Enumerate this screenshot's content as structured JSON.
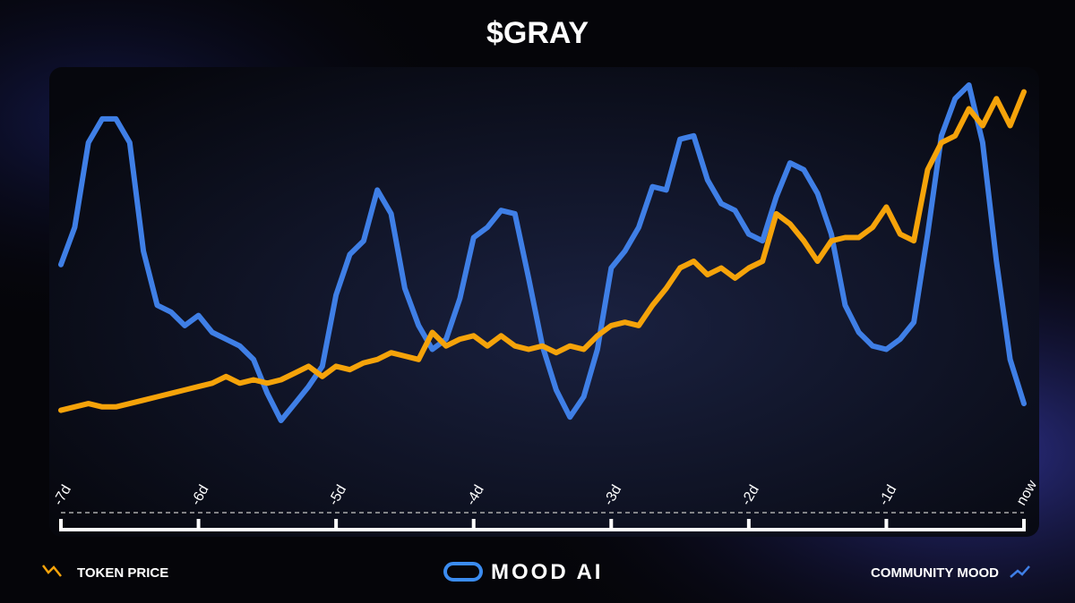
{
  "brand": "MOOD AI",
  "chart_data": {
    "type": "line",
    "title": "$GRAY",
    "x": [
      -7,
      -6.9,
      -6.8,
      -6.7,
      -6.6,
      -6.5,
      -6.4,
      -6.3,
      -6.2,
      -6.1,
      -6,
      -5.9,
      -5.8,
      -5.7,
      -5.6,
      -5.5,
      -5.4,
      -5.3,
      -5.2,
      -5.1,
      -5,
      -4.9,
      -4.8,
      -4.7,
      -4.6,
      -4.5,
      -4.4,
      -4.3,
      -4.2,
      -4.1,
      -4,
      -3.9,
      -3.8,
      -3.7,
      -3.6,
      -3.5,
      -3.4,
      -3.3,
      -3.2,
      -3.1,
      -3,
      -2.9,
      -2.8,
      -2.7,
      -2.6,
      -2.5,
      -2.4,
      -2.3,
      -2.2,
      -2.1,
      -2,
      -1.9,
      -1.8,
      -1.7,
      -1.6,
      -1.5,
      -1.4,
      -1.3,
      -1.2,
      -1.1,
      -1,
      -0.9,
      -0.8,
      -0.7,
      -0.6,
      -0.5,
      -0.4,
      -0.3,
      -0.2,
      -0.1,
      0
    ],
    "xlim": [
      -7,
      0
    ],
    "xticks": [
      {
        "value": -7,
        "label": "-7d"
      },
      {
        "value": -6,
        "label": "-6d"
      },
      {
        "value": -5,
        "label": "-5d"
      },
      {
        "value": -4,
        "label": "-4d"
      },
      {
        "value": -3,
        "label": "-3d"
      },
      {
        "value": -2,
        "label": "-2d"
      },
      {
        "value": -1,
        "label": "-1d"
      },
      {
        "value": 0,
        "label": "now"
      }
    ],
    "series": [
      {
        "name": "TOKEN PRICE",
        "color": "#f5a30a",
        "values": [
          3,
          4,
          5,
          4,
          4,
          5,
          6,
          7,
          8,
          9,
          10,
          11,
          13,
          11,
          12,
          11,
          12,
          14,
          16,
          13,
          16,
          15,
          17,
          18,
          20,
          19,
          18,
          26,
          22,
          24,
          25,
          22,
          25,
          22,
          21,
          22,
          20,
          22,
          21,
          25,
          28,
          29,
          28,
          34,
          39,
          45,
          47,
          43,
          45,
          42,
          45,
          47,
          61,
          58,
          53,
          47,
          53,
          54,
          54,
          57,
          63,
          55,
          53,
          74,
          82,
          84,
          92,
          87,
          95,
          87,
          97
        ]
      },
      {
        "name": "COMMUNITY MOOD",
        "color": "#3f7fe6",
        "values": [
          46,
          57,
          82,
          89,
          89,
          82,
          50,
          34,
          32,
          28,
          31,
          26,
          24,
          22,
          18,
          8,
          0,
          5,
          10,
          16,
          37,
          49,
          53,
          68,
          61,
          39,
          28,
          21,
          24,
          36,
          54,
          57,
          62,
          61,
          42,
          22,
          9,
          1,
          7,
          21,
          45,
          50,
          57,
          69,
          68,
          83,
          84,
          71,
          64,
          62,
          55,
          53,
          66,
          76,
          74,
          67,
          55,
          34,
          26,
          22,
          21,
          24,
          29,
          55,
          84,
          95,
          99,
          82,
          47,
          18,
          5
        ]
      }
    ]
  }
}
